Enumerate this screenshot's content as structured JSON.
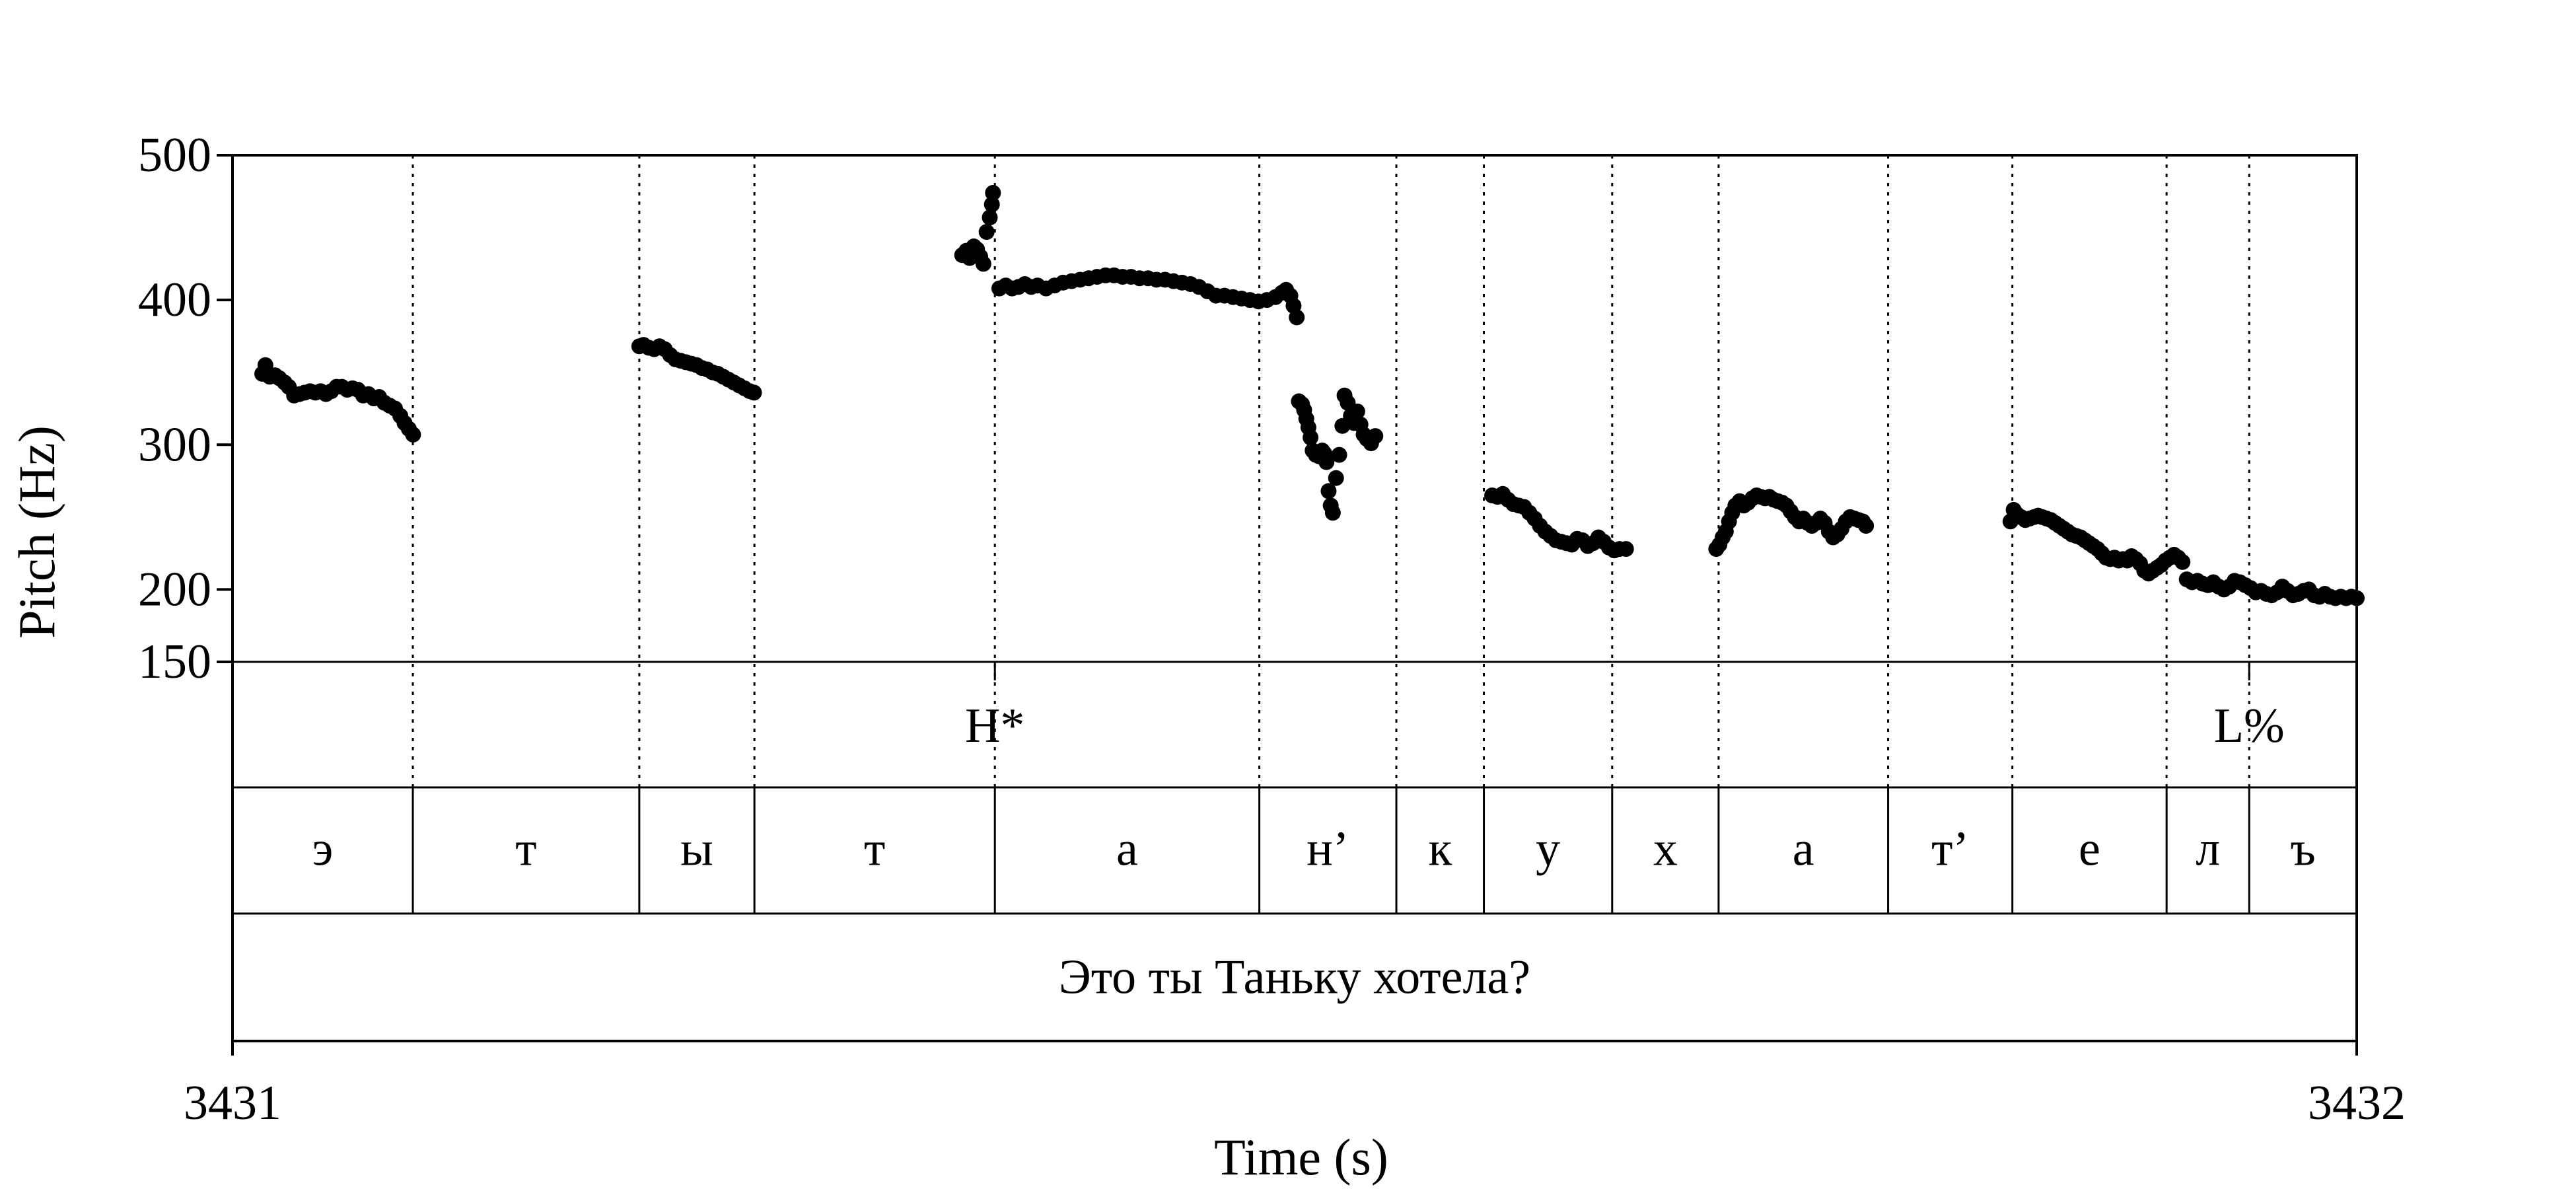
{
  "chart_data": {
    "type": "scatter",
    "xlabel": "Time (s)",
    "ylabel": "Pitch (Hz)",
    "xlim": [
      3431,
      3432
    ],
    "ylim": [
      150,
      500
    ],
    "x_ticks": [
      "3431",
      "3432"
    ],
    "y_ticks": [
      150,
      200,
      300,
      400,
      500
    ],
    "grid": false,
    "segment_boundaries": [
      3431.0849,
      3431.1915,
      3431.2457,
      3431.3589,
      3431.4834,
      3431.5479,
      3431.5891,
      3431.6495,
      3431.6996,
      3431.7794,
      3431.8379,
      3431.9105,
      3431.9494
    ],
    "tones": [
      {
        "time": 3431.3589,
        "label": "H*"
      },
      {
        "time": 3431.9494,
        "label": "L%"
      }
    ],
    "segments": [
      {
        "start": 3431.0,
        "end": 3431.0849,
        "label": "э"
      },
      {
        "start": 3431.0849,
        "end": 3431.1915,
        "label": "т"
      },
      {
        "start": 3431.1915,
        "end": 3431.2457,
        "label": "ы"
      },
      {
        "start": 3431.2457,
        "end": 3431.3589,
        "label": "т"
      },
      {
        "start": 3431.3589,
        "end": 3431.4834,
        "label": "а"
      },
      {
        "start": 3431.4834,
        "end": 3431.5479,
        "label": "н’"
      },
      {
        "start": 3431.5479,
        "end": 3431.5891,
        "label": "к"
      },
      {
        "start": 3431.5891,
        "end": 3431.6495,
        "label": "у"
      },
      {
        "start": 3431.6495,
        "end": 3431.6996,
        "label": "х"
      },
      {
        "start": 3431.6996,
        "end": 3431.7794,
        "label": "а"
      },
      {
        "start": 3431.7794,
        "end": 3431.8379,
        "label": "т’"
      },
      {
        "start": 3431.8379,
        "end": 3431.9105,
        "label": "е"
      },
      {
        "start": 3431.9105,
        "end": 3431.9494,
        "label": "л"
      },
      {
        "start": 3431.9494,
        "end": 3432.0,
        "label": "ъ"
      }
    ],
    "sentence": "Это ты Таньку хотела?",
    "series": [
      {
        "points": [
          [
            3431.014,
            349
          ],
          [
            3431.0155,
            355
          ],
          [
            3431.0175,
            347
          ],
          [
            3431.02,
            348
          ],
          [
            3431.022,
            346
          ],
          [
            3431.0245,
            343
          ],
          [
            3431.0265,
            340
          ],
          [
            3431.029,
            334
          ],
          [
            3431.0315,
            335
          ],
          [
            3431.034,
            336
          ],
          [
            3431.0365,
            337
          ],
          [
            3431.039,
            336
          ],
          [
            3431.0415,
            337
          ],
          [
            3431.044,
            335
          ],
          [
            3431.0465,
            337
          ],
          [
            3431.049,
            340
          ],
          [
            3431.0515,
            340
          ],
          [
            3431.054,
            338
          ],
          [
            3431.0565,
            339
          ],
          [
            3431.059,
            338
          ],
          [
            3431.0615,
            334
          ],
          [
            3431.064,
            335
          ],
          [
            3431.0665,
            332
          ],
          [
            3431.069,
            333
          ],
          [
            3431.0715,
            329
          ],
          [
            3431.074,
            327
          ],
          [
            3431.0765,
            325
          ],
          [
            3431.079,
            320
          ],
          [
            3431.081,
            315
          ],
          [
            3431.083,
            311
          ],
          [
            3431.085,
            307
          ],
          [
            3431.1915,
            368
          ],
          [
            3431.1935,
            369
          ],
          [
            3431.196,
            367
          ],
          [
            3431.1985,
            366
          ],
          [
            3431.201,
            368
          ],
          [
            3431.2035,
            366
          ],
          [
            3431.206,
            362
          ],
          [
            3431.2085,
            359
          ],
          [
            3431.211,
            358
          ],
          [
            3431.2135,
            357
          ],
          [
            3431.216,
            356
          ],
          [
            3431.2185,
            355
          ],
          [
            3431.221,
            353
          ],
          [
            3431.2235,
            352
          ],
          [
            3431.226,
            350
          ],
          [
            3431.2285,
            349
          ],
          [
            3431.231,
            347
          ],
          [
            3431.2335,
            345
          ],
          [
            3431.236,
            343
          ],
          [
            3431.2385,
            341
          ],
          [
            3431.241,
            339
          ],
          [
            3431.2435,
            337
          ],
          [
            3431.2455,
            336
          ],
          [
            3431.3435,
            431
          ],
          [
            3431.3455,
            434
          ],
          [
            3431.347,
            429
          ],
          [
            3431.349,
            437
          ],
          [
            3431.3505,
            435
          ],
          [
            3431.352,
            430
          ],
          [
            3431.3535,
            425
          ],
          [
            3431.355,
            447
          ],
          [
            3431.3565,
            457
          ],
          [
            3431.3575,
            466
          ],
          [
            3431.358,
            474
          ],
          [
            3431.361,
            408
          ],
          [
            3431.364,
            410
          ],
          [
            3431.367,
            408
          ],
          [
            3431.37,
            409
          ],
          [
            3431.373,
            411
          ],
          [
            3431.376,
            409
          ],
          [
            3431.379,
            410
          ],
          [
            3431.383,
            408
          ],
          [
            3431.387,
            410
          ],
          [
            3431.391,
            412
          ],
          [
            3431.395,
            413
          ],
          [
            3431.399,
            414
          ],
          [
            3431.403,
            415
          ],
          [
            3431.407,
            416
          ],
          [
            3431.411,
            417
          ],
          [
            3431.415,
            417
          ],
          [
            3431.419,
            416
          ],
          [
            3431.423,
            416
          ],
          [
            3431.427,
            415
          ],
          [
            3431.431,
            415
          ],
          [
            3431.435,
            414
          ],
          [
            3431.439,
            414
          ],
          [
            3431.443,
            413
          ],
          [
            3431.447,
            412
          ],
          [
            3431.451,
            411
          ],
          [
            3431.455,
            409
          ],
          [
            3431.459,
            406
          ],
          [
            3431.463,
            403
          ],
          [
            3431.467,
            403
          ],
          [
            3431.471,
            402
          ],
          [
            3431.475,
            401
          ],
          [
            3431.479,
            400
          ],
          [
            3431.483,
            399
          ],
          [
            3431.487,
            400
          ],
          [
            3431.491,
            402
          ],
          [
            3431.494,
            405
          ],
          [
            3431.496,
            407
          ],
          [
            3431.498,
            403
          ],
          [
            3431.4995,
            396
          ],
          [
            3431.501,
            388
          ],
          [
            3431.502,
            330
          ],
          [
            3431.5035,
            328
          ],
          [
            3431.5045,
            324
          ],
          [
            3431.5055,
            318
          ],
          [
            3431.5065,
            312
          ],
          [
            3431.5075,
            305
          ],
          [
            3431.5085,
            296
          ],
          [
            3431.51,
            293
          ],
          [
            3431.5115,
            292
          ],
          [
            3431.513,
            296
          ],
          [
            3431.514,
            294
          ],
          [
            3431.515,
            288
          ],
          [
            3431.516,
            268
          ],
          [
            3431.517,
            258
          ],
          [
            3431.518,
            253
          ],
          [
            3431.5195,
            277
          ],
          [
            3431.521,
            293
          ],
          [
            3431.5225,
            313
          ],
          [
            3431.5235,
            334
          ],
          [
            3431.525,
            329
          ],
          [
            3431.5265,
            320
          ],
          [
            3431.528,
            315
          ],
          [
            3431.5295,
            323
          ],
          [
            3431.531,
            314
          ],
          [
            3431.5325,
            307
          ],
          [
            3431.534,
            304
          ],
          [
            3431.536,
            301
          ],
          [
            3431.538,
            306
          ],
          [
            3431.593,
            265
          ],
          [
            3431.5955,
            264
          ],
          [
            3431.598,
            266
          ],
          [
            3431.6005,
            262
          ],
          [
            3431.603,
            259
          ],
          [
            3431.6055,
            258
          ],
          [
            3431.608,
            257
          ],
          [
            3431.6105,
            253
          ],
          [
            3431.613,
            249
          ],
          [
            3431.6155,
            244
          ],
          [
            3431.618,
            240
          ],
          [
            3431.6205,
            237
          ],
          [
            3431.623,
            234
          ],
          [
            3431.6255,
            233
          ],
          [
            3431.628,
            232
          ],
          [
            3431.6305,
            231
          ],
          [
            3431.633,
            235
          ],
          [
            3431.6355,
            234
          ],
          [
            3431.638,
            230
          ],
          [
            3431.6405,
            232
          ],
          [
            3431.643,
            236
          ],
          [
            3431.6455,
            233
          ],
          [
            3431.648,
            229
          ],
          [
            3431.6505,
            227
          ],
          [
            3431.653,
            228
          ],
          [
            3431.656,
            228
          ],
          [
            3431.6985,
            228
          ],
          [
            3431.7,
            231
          ],
          [
            3431.7015,
            236
          ],
          [
            3431.703,
            240
          ],
          [
            3431.7045,
            247
          ],
          [
            3431.706,
            253
          ],
          [
            3431.7075,
            258
          ],
          [
            3431.7095,
            261
          ],
          [
            3431.7115,
            258
          ],
          [
            3431.7135,
            260
          ],
          [
            3431.7155,
            263
          ],
          [
            3431.7175,
            265
          ],
          [
            3431.7195,
            264
          ],
          [
            3431.7215,
            263
          ],
          [
            3431.7235,
            264
          ],
          [
            3431.7255,
            262
          ],
          [
            3431.7275,
            261
          ],
          [
            3431.7295,
            260
          ],
          [
            3431.7315,
            258
          ],
          [
            3431.7335,
            254
          ],
          [
            3431.7355,
            250
          ],
          [
            3431.7375,
            247
          ],
          [
            3431.7395,
            249
          ],
          [
            3431.7415,
            246
          ],
          [
            3431.7435,
            244
          ],
          [
            3431.7455,
            246
          ],
          [
            3431.7475,
            249
          ],
          [
            3431.7495,
            246
          ],
          [
            3431.7515,
            240
          ],
          [
            3431.7535,
            236
          ],
          [
            3431.7555,
            238
          ],
          [
            3431.7575,
            242
          ],
          [
            3431.7595,
            247
          ],
          [
            3431.7615,
            250
          ],
          [
            3431.7635,
            249
          ],
          [
            3431.7655,
            248
          ],
          [
            3431.7675,
            247
          ],
          [
            3431.769,
            244
          ],
          [
            3431.837,
            247
          ],
          [
            3431.8385,
            255
          ],
          [
            3431.84,
            252
          ],
          [
            3431.842,
            250
          ],
          [
            3431.844,
            248
          ],
          [
            3431.846,
            249
          ],
          [
            3431.848,
            250
          ],
          [
            3431.85,
            251
          ],
          [
            3431.852,
            250
          ],
          [
            3431.854,
            249
          ],
          [
            3431.856,
            248
          ],
          [
            3431.858,
            246
          ],
          [
            3431.86,
            244
          ],
          [
            3431.862,
            242
          ],
          [
            3431.864,
            240
          ],
          [
            3431.866,
            238
          ],
          [
            3431.868,
            237
          ],
          [
            3431.87,
            236
          ],
          [
            3431.872,
            234
          ],
          [
            3431.874,
            232
          ],
          [
            3431.876,
            230
          ],
          [
            3431.878,
            228
          ],
          [
            3431.88,
            225
          ],
          [
            3431.882,
            222
          ],
          [
            3431.884,
            221
          ],
          [
            3431.886,
            222
          ],
          [
            3431.888,
            220
          ],
          [
            3431.89,
            221
          ],
          [
            3431.892,
            220
          ],
          [
            3431.894,
            223
          ],
          [
            3431.896,
            221
          ],
          [
            3431.898,
            218
          ],
          [
            3431.9,
            213
          ],
          [
            3431.902,
            211
          ],
          [
            3431.904,
            213
          ],
          [
            3431.906,
            215
          ],
          [
            3431.908,
            217
          ],
          [
            3431.91,
            220
          ],
          [
            3431.912,
            222
          ],
          [
            3431.914,
            224
          ],
          [
            3431.916,
            222
          ],
          [
            3431.918,
            219
          ],
          [
            3431.92,
            207
          ],
          [
            3431.9225,
            205
          ],
          [
            3431.925,
            206
          ],
          [
            3431.9275,
            204
          ],
          [
            3431.93,
            203
          ],
          [
            3431.9325,
            205
          ],
          [
            3431.935,
            202
          ],
          [
            3431.9375,
            200
          ],
          [
            3431.94,
            202
          ],
          [
            3431.9425,
            206
          ],
          [
            3431.945,
            205
          ],
          [
            3431.9475,
            203
          ],
          [
            3431.95,
            201
          ],
          [
            3431.9525,
            198
          ],
          [
            3431.955,
            199
          ],
          [
            3431.9575,
            197
          ],
          [
            3431.96,
            196
          ],
          [
            3431.9625,
            198
          ],
          [
            3431.965,
            202
          ],
          [
            3431.9675,
            199
          ],
          [
            3431.97,
            196
          ],
          [
            3431.9725,
            197
          ],
          [
            3431.975,
            199
          ],
          [
            3431.9775,
            200
          ],
          [
            3431.98,
            196
          ],
          [
            3431.9825,
            195
          ],
          [
            3431.985,
            197
          ],
          [
            3431.9875,
            195
          ],
          [
            3431.99,
            194
          ],
          [
            3431.9925,
            195
          ],
          [
            3431.995,
            194
          ],
          [
            3431.9975,
            195
          ],
          [
            3432.0,
            194
          ]
        ]
      }
    ]
  }
}
